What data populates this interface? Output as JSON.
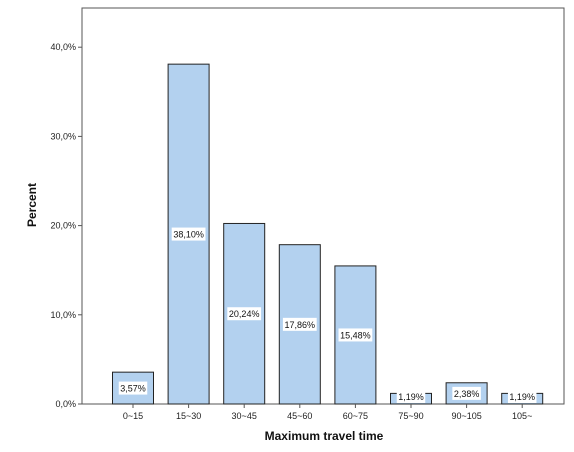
{
  "chart_data": {
    "type": "bar",
    "categories": [
      "0~15",
      "15~30",
      "30~45",
      "45~60",
      "60~75",
      "75~90",
      "90~105",
      "105~"
    ],
    "values": [
      3.57,
      38.1,
      20.24,
      17.86,
      15.48,
      1.19,
      2.38,
      1.19
    ],
    "data_labels": [
      "3,57%",
      "38,10%",
      "20,24%",
      "17,86%",
      "15,48%",
      "1,19%",
      "2,38%",
      "1,19%"
    ],
    "xlabel": "Maximum travel time",
    "ylabel": "Percent",
    "ylim": [
      0,
      45
    ],
    "yticks": [
      0,
      10,
      20,
      30,
      40
    ],
    "ytick_labels": [
      "0,0%",
      "10,0%",
      "20,0%",
      "30,0%",
      "40,0%"
    ],
    "grid": false,
    "colors": {
      "bar_fill": "#b3d1ef",
      "bar_stroke": "#222222",
      "plot_border": "#555555",
      "label_bg": "#ffffff"
    }
  }
}
